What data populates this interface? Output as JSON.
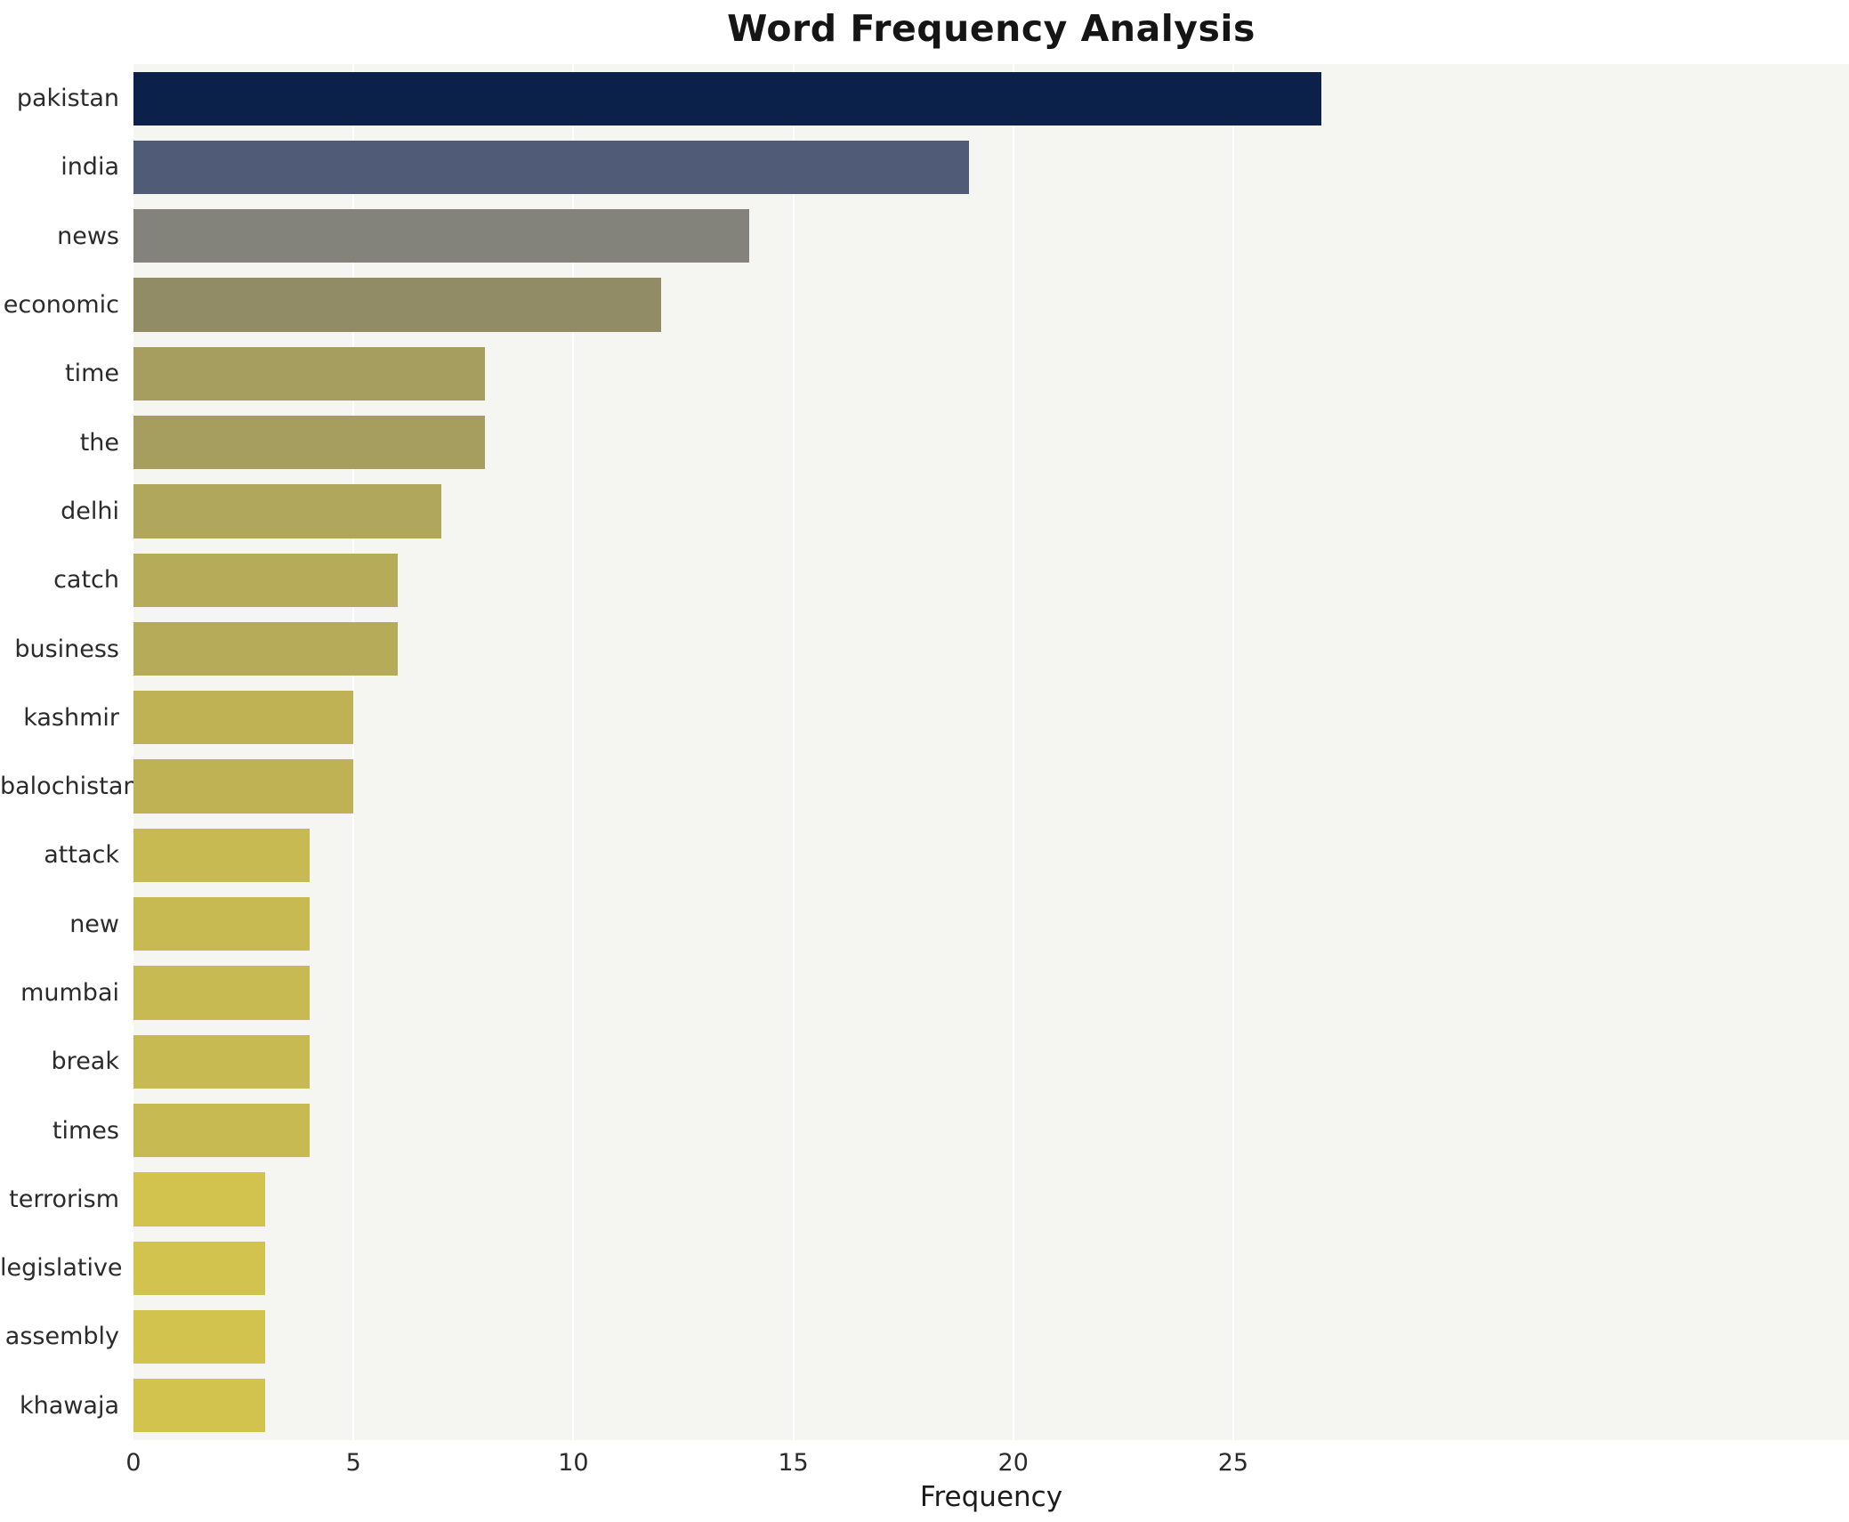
{
  "chart_data": {
    "type": "bar",
    "orientation": "horizontal",
    "title": "Word Frequency Analysis",
    "xlabel": "Frequency",
    "ylabel": "",
    "categories": [
      "pakistan",
      "india",
      "news",
      "economic",
      "time",
      "the",
      "delhi",
      "catch",
      "business",
      "kashmir",
      "balochistan",
      "attack",
      "new",
      "mumbai",
      "break",
      "times",
      "terrorism",
      "legislative",
      "assembly",
      "khawaja"
    ],
    "values": [
      27,
      19,
      14,
      12,
      8,
      8,
      7,
      6,
      6,
      5,
      5,
      4,
      4,
      4,
      4,
      4,
      3,
      3,
      3,
      3
    ],
    "bar_colors": [
      "#0b2149",
      "#4f5b77",
      "#84837b",
      "#918b66",
      "#a59e5f",
      "#a59e5f",
      "#b0a65c",
      "#b5ab58",
      "#b5ab58",
      "#bfb254",
      "#bfb254",
      "#c8ba52",
      "#c8ba52",
      "#c8ba52",
      "#c8ba52",
      "#c8ba52",
      "#d2c24e",
      "#d2c24e",
      "#d2c24e",
      "#d2c24e"
    ],
    "xlim": [
      0,
      39
    ],
    "xticks": [
      0,
      5,
      10,
      15,
      20,
      25
    ],
    "grid": true,
    "legend": "none",
    "plot_background": "#f5f5f2"
  }
}
